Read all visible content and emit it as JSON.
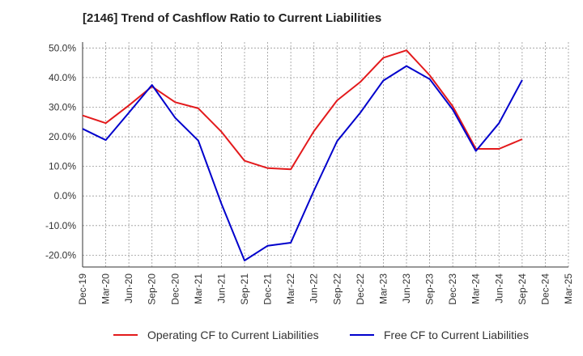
{
  "chart_data": {
    "type": "line",
    "title": "[2146]  Trend of Cashflow Ratio to Current Liabilities",
    "xlabel": "",
    "ylabel": "",
    "ylim": [
      -24,
      52
    ],
    "y_ticks": [
      "50.0%",
      "40.0%",
      "30.0%",
      "20.0%",
      "10.0%",
      "0.0%",
      "-10.0%",
      "-20.0%"
    ],
    "y_tick_values": [
      50,
      40,
      30,
      20,
      10,
      0,
      -10,
      -20
    ],
    "categories": [
      "Dec-19",
      "Mar-20",
      "Jun-20",
      "Sep-20",
      "Dec-20",
      "Mar-21",
      "Jun-21",
      "Sep-21",
      "Dec-21",
      "Mar-22",
      "Jun-22",
      "Sep-22",
      "Dec-22",
      "Mar-23",
      "Jun-23",
      "Sep-23",
      "Dec-23",
      "Mar-24",
      "Jun-24",
      "Sep-24",
      "Dec-24",
      "Mar-25"
    ],
    "grid": true,
    "legend_position": "bottom",
    "series": [
      {
        "name": "Operating CF to Current Liabilities",
        "color": "#e31a1c",
        "values": [
          27.2,
          24.6,
          30.6,
          37.0,
          31.7,
          29.6,
          21.7,
          11.9,
          9.4,
          9.0,
          21.9,
          32.3,
          38.5,
          46.7,
          49.2,
          40.8,
          30.3,
          15.9,
          15.9,
          19.2,
          null,
          null
        ]
      },
      {
        "name": "Free CF to Current Liabilities",
        "color": "#0000cc",
        "values": [
          22.7,
          18.9,
          28.1,
          37.5,
          26.4,
          18.7,
          -2.6,
          -21.8,
          -16.8,
          -15.8,
          1.8,
          18.5,
          28.1,
          39.0,
          43.9,
          39.5,
          29.2,
          15.2,
          24.6,
          39.2,
          null,
          null
        ]
      }
    ]
  }
}
